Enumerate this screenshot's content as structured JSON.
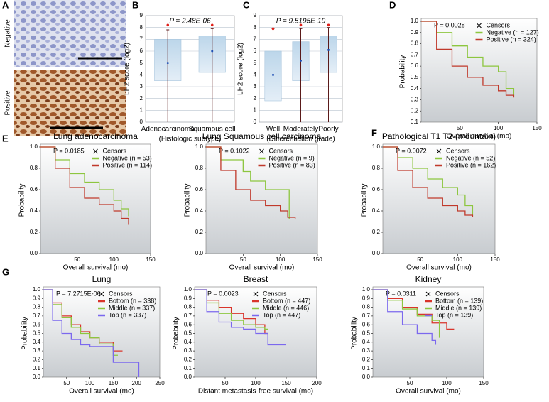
{
  "panel_labels": [
    "A",
    "B",
    "C",
    "D",
    "E",
    "F",
    "G"
  ],
  "image_labels": [
    "Negative",
    "Positive"
  ],
  "chart_data": [
    {
      "type": "box",
      "annotation": "P = 2.48E-06",
      "y_label": "LH2 score (log2)",
      "x_label": "(Histologic subtype)",
      "categories": [
        "Adenocarcinoma",
        "Squamous cell"
      ],
      "low": [
        0,
        0
      ],
      "q1": [
        3.5,
        4.2
      ],
      "median": [
        5,
        6
      ],
      "q3": [
        7,
        7.3
      ],
      "high": [
        7.8,
        7.9
      ],
      "outlier": [
        8.2,
        8.2
      ],
      "ylim": [
        0,
        9
      ],
      "yticks": [
        0,
        1,
        2,
        3,
        4,
        5,
        6,
        7,
        8,
        9
      ],
      "grid": true
    },
    {
      "type": "box",
      "annotation": "P = 9.5195E-10",
      "y_label": "LH2 score (log2)",
      "x_label": "(Differentiation grade)",
      "categories": [
        "Well",
        "Moderately",
        "Poorly"
      ],
      "low": [
        0,
        0,
        0
      ],
      "q1": [
        1.8,
        3.5,
        4.2
      ],
      "median": [
        4,
        5.2,
        6.1
      ],
      "q3": [
        6,
        6.8,
        7.3
      ],
      "high": [
        7.9,
        7.9,
        8
      ],
      "outlier": [
        7.9,
        8.2,
        8.2
      ],
      "ylim": [
        0,
        9
      ],
      "yticks": [
        0,
        1,
        2,
        3,
        4,
        5,
        6,
        7,
        8,
        9
      ],
      "grid": true
    },
    {
      "type": "km",
      "annotation": "P = 0.0028",
      "censor_label": "Censors",
      "y_label": "Probability",
      "x_label": "Overall survival (mo)",
      "xlim": [
        0,
        150
      ],
      "xticks": [
        50,
        100,
        150
      ],
      "ylim": [
        0.1,
        1
      ],
      "yticks": [
        0.1,
        0.2,
        0.3,
        0.4,
        0.5,
        0.6,
        0.7,
        0.8,
        0.9,
        {
          "value": 1,
          "label": "1.0"
        }
      ],
      "series": [
        {
          "name": "Negative (n = 127)",
          "color": "#8dc63f",
          "x": [
            0,
            20,
            40,
            60,
            80,
            100,
            110,
            120
          ],
          "values": [
            1,
            0.9,
            0.78,
            0.68,
            0.6,
            0.55,
            0.4,
            0.33
          ]
        },
        {
          "name": "Positive (n = 324)",
          "color": "#c0392b",
          "x": [
            0,
            20,
            40,
            60,
            80,
            100,
            110,
            120
          ],
          "values": [
            1,
            0.75,
            0.6,
            0.5,
            0.43,
            0.38,
            0.34,
            0.32
          ]
        }
      ]
    },
    {
      "type": "km",
      "title": "Lung adenocarcinoma",
      "annotation": "P = 0.0185",
      "censor_label": "Censors",
      "y_label": "Probability",
      "x_label": "Overall survival (mo)",
      "xlim": [
        0,
        150
      ],
      "xticks": [
        50,
        100,
        150
      ],
      "ylim": [
        0,
        1
      ],
      "yticks": [
        {
          "value": 0,
          "label": "0.0"
        },
        0.2,
        0.4,
        0.6,
        0.8,
        {
          "value": 1,
          "label": "1.0"
        }
      ],
      "series": [
        {
          "name": "Negative (n = 53)",
          "color": "#8dc63f",
          "x": [
            0,
            20,
            40,
            60,
            80,
            100,
            110,
            120
          ],
          "values": [
            1,
            0.88,
            0.75,
            0.67,
            0.6,
            0.5,
            0.42,
            0.35
          ]
        },
        {
          "name": "Positive (n = 114)",
          "color": "#c0392b",
          "x": [
            0,
            20,
            40,
            60,
            80,
            100,
            110,
            120
          ],
          "values": [
            1,
            0.8,
            0.62,
            0.52,
            0.46,
            0.4,
            0.33,
            0.27
          ]
        }
      ]
    },
    {
      "type": "km",
      "title": "Lung Squamous cell carcinoma",
      "annotation": "P = 0.1022",
      "censor_label": "Censors",
      "y_label": "Probability",
      "x_label": "Overall survival (mo)",
      "xlim": [
        0,
        150
      ],
      "xticks": [
        50,
        100,
        150
      ],
      "ylim": [
        0,
        1
      ],
      "yticks": [
        {
          "value": 0,
          "label": "0.0"
        },
        0.2,
        0.4,
        0.6,
        0.8,
        {
          "value": 1,
          "label": "1.0"
        }
      ],
      "series": [
        {
          "name": "Negative (n = 9)",
          "color": "#8dc63f",
          "x": [
            0,
            20,
            50,
            60,
            80,
            90,
            100,
            110,
            112
          ],
          "values": [
            1,
            0.88,
            0.77,
            0.68,
            0.6,
            0.6,
            0.6,
            0.6,
            0.32
          ]
        },
        {
          "name": "Positive (n = 83)",
          "color": "#c0392b",
          "x": [
            0,
            20,
            40,
            60,
            80,
            100,
            110,
            120
          ],
          "values": [
            1,
            0.78,
            0.6,
            0.5,
            0.45,
            0.4,
            0.34,
            0.32
          ]
        }
      ]
    },
    {
      "type": "km",
      "title": "Pathological T1 T2 (mountain)",
      "annotation": "P = 0.0072",
      "censor_label": "Censors",
      "y_label": "Probability",
      "x_label": "Overall survival (mo)",
      "xlim": [
        0,
        150
      ],
      "xticks": [
        50,
        100,
        150
      ],
      "ylim": [
        0,
        1
      ],
      "yticks": [
        {
          "value": 0,
          "label": "0.0"
        },
        0.2,
        0.4,
        0.6,
        0.8,
        {
          "value": 1,
          "label": "1.0"
        }
      ],
      "series": [
        {
          "name": "Negative (n = 52)",
          "color": "#8dc63f",
          "x": [
            0,
            20,
            40,
            60,
            80,
            100,
            110,
            120
          ],
          "values": [
            1,
            0.9,
            0.8,
            0.7,
            0.62,
            0.55,
            0.45,
            0.35
          ]
        },
        {
          "name": "Positive (n = 162)",
          "color": "#c0392b",
          "x": [
            0,
            20,
            40,
            60,
            80,
            100,
            110,
            120
          ],
          "values": [
            1,
            0.78,
            0.62,
            0.52,
            0.45,
            0.4,
            0.36,
            0.34
          ]
        }
      ]
    },
    {
      "type": "km",
      "title": "Lung",
      "annotation": "P = 7.2715E-06",
      "censor_label": "Censors",
      "y_label": "Probability",
      "x_label": "Overall survival (mo)",
      "xlim": [
        0,
        250
      ],
      "xticks": [
        50,
        100,
        150,
        200,
        250
      ],
      "ylim": [
        0,
        1
      ],
      "yticks": [
        {
          "value": 0,
          "label": "0.0"
        },
        0.1,
        0.2,
        0.3,
        0.4,
        0.5,
        0.6,
        0.7,
        0.8,
        0.9,
        {
          "value": 1,
          "label": "1.0"
        }
      ],
      "series": [
        {
          "name": "Bottom (n = 338)",
          "color": "#d9342b",
          "x": [
            0,
            20,
            40,
            60,
            80,
            100,
            120,
            150,
            170
          ],
          "values": [
            1,
            0.85,
            0.7,
            0.6,
            0.52,
            0.45,
            0.4,
            0.3,
            0.3
          ]
        },
        {
          "name": "Middle (n = 337)",
          "color": "#8dc63f",
          "x": [
            0,
            20,
            40,
            60,
            80,
            100,
            120,
            150,
            160
          ],
          "values": [
            1,
            0.83,
            0.68,
            0.57,
            0.5,
            0.45,
            0.38,
            0.25,
            0.25
          ]
        },
        {
          "name": "Top (n = 337)",
          "color": "#7b68ee",
          "x": [
            0,
            20,
            40,
            60,
            80,
            100,
            120,
            150,
            200,
            205
          ],
          "values": [
            1,
            0.65,
            0.5,
            0.43,
            0.37,
            0.35,
            0.35,
            0.17,
            0.17,
            0
          ]
        }
      ]
    },
    {
      "type": "km",
      "title": "Breast",
      "annotation": "P = 0.0023",
      "censor_label": "Censors",
      "y_label": "Probability",
      "x_label": "Distant metastasis-free survival (mo)",
      "xlim": [
        0,
        200
      ],
      "xticks": [
        50,
        100,
        150,
        200
      ],
      "ylim": [
        0,
        1
      ],
      "yticks": [
        {
          "value": 0,
          "label": "0.0"
        },
        0.1,
        0.2,
        0.3,
        0.4,
        0.5,
        0.6,
        0.7,
        0.8,
        0.9,
        {
          "value": 1,
          "label": "1.0"
        }
      ],
      "series": [
        {
          "name": "Bottom (n = 447)",
          "color": "#d9342b",
          "x": [
            0,
            20,
            40,
            60,
            80,
            100,
            115,
            120
          ],
          "values": [
            1,
            0.88,
            0.8,
            0.73,
            0.67,
            0.6,
            0.5,
            0.5
          ]
        },
        {
          "name": "Middle (n = 446)",
          "color": "#8dc63f",
          "x": [
            0,
            20,
            40,
            60,
            80,
            100,
            115,
            120
          ],
          "values": [
            1,
            0.85,
            0.73,
            0.65,
            0.6,
            0.57,
            0.55,
            0.55
          ]
        },
        {
          "name": "Top (n = 447)",
          "color": "#7b68ee",
          "x": [
            0,
            20,
            40,
            60,
            80,
            100,
            120,
            130,
            150
          ],
          "values": [
            1,
            0.75,
            0.63,
            0.57,
            0.55,
            0.5,
            0.37,
            0.37,
            0.37
          ]
        }
      ]
    },
    {
      "type": "km",
      "title": "Kidney",
      "annotation": "P = 0.0311",
      "censor_label": "Censors",
      "y_label": "Probability",
      "x_label": "Overall survival (mo)",
      "xlim": [
        0,
        150
      ],
      "xticks": [
        50,
        100,
        150
      ],
      "ylim": [
        0,
        1
      ],
      "yticks": [
        {
          "value": 0,
          "label": "0.0"
        },
        0.1,
        0.2,
        0.3,
        0.4,
        0.5,
        0.6,
        0.7,
        0.8,
        0.9,
        {
          "value": 1,
          "label": "1.0"
        }
      ],
      "series": [
        {
          "name": "Bottom (n = 139)",
          "color": "#d9342b",
          "x": [
            0,
            20,
            40,
            60,
            80,
            100,
            110
          ],
          "values": [
            1,
            0.9,
            0.8,
            0.72,
            0.62,
            0.55,
            0.55
          ]
        },
        {
          "name": "Middle (n = 139)",
          "color": "#8dc63f",
          "x": [
            0,
            20,
            40,
            60,
            80,
            90
          ],
          "values": [
            1,
            0.88,
            0.78,
            0.7,
            0.65,
            0.45
          ]
        },
        {
          "name": "Top (n = 139)",
          "color": "#7b68ee",
          "x": [
            0,
            20,
            40,
            60,
            80,
            85
          ],
          "values": [
            1,
            0.75,
            0.6,
            0.5,
            0.42,
            0.37
          ]
        }
      ]
    }
  ]
}
